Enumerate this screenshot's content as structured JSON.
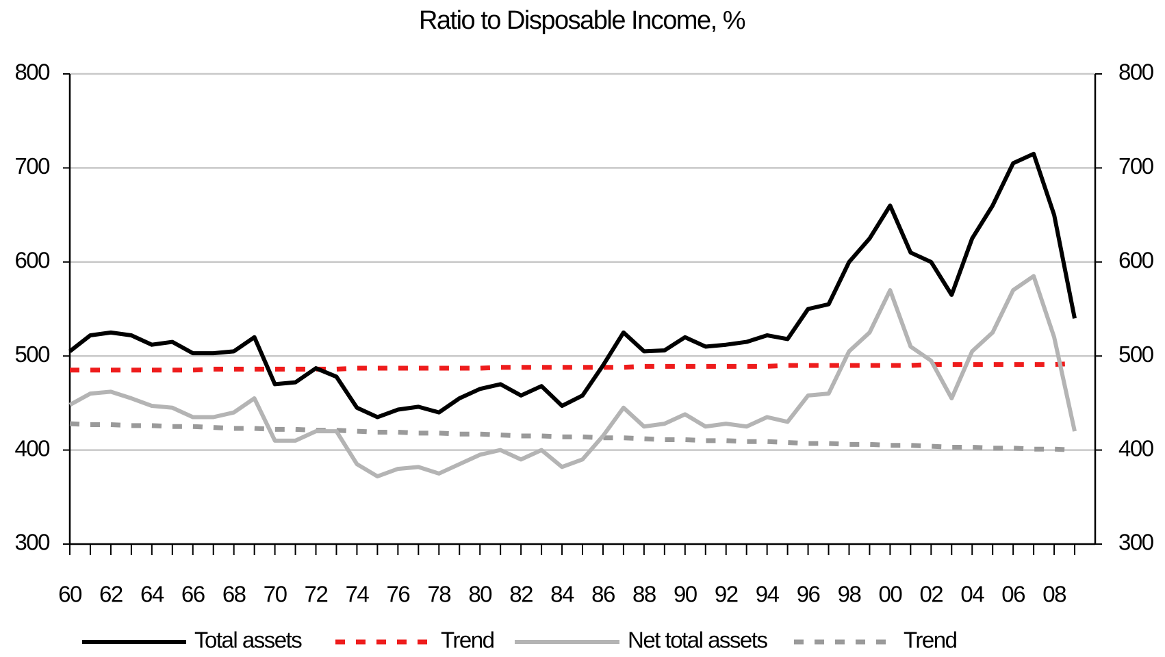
{
  "chart_data": {
    "type": "line",
    "title": "Ratio to Disposable Income, %",
    "categories": [
      "60",
      null,
      "62",
      null,
      "64",
      null,
      "66",
      null,
      "68",
      null,
      "70",
      null,
      "72",
      null,
      "74",
      null,
      "76",
      null,
      "78",
      null,
      "80",
      null,
      "82",
      null,
      "84",
      null,
      "86",
      null,
      "88",
      null,
      "90",
      null,
      "92",
      null,
      "94",
      null,
      "96",
      null,
      "98",
      null,
      "00",
      null,
      "02",
      null,
      "04",
      null,
      "06",
      null,
      "08",
      null
    ],
    "series": [
      {
        "name": "Total assets",
        "color": "#000000",
        "dashed": false,
        "values": [
          505,
          522,
          525,
          522,
          512,
          515,
          503,
          503,
          505,
          520,
          470,
          472,
          487,
          478,
          445,
          435,
          443,
          446,
          440,
          455,
          465,
          470,
          458,
          468,
          447,
          458,
          490,
          525,
          505,
          506,
          520,
          510,
          512,
          515,
          522,
          518,
          550,
          555,
          600,
          625,
          660,
          610,
          600,
          565,
          625,
          660,
          705,
          715,
          650,
          540
        ]
      },
      {
        "name": "Trend",
        "color": "#ee1c1c",
        "dashed": true,
        "values": [
          485,
          485,
          485,
          485,
          485,
          485,
          485,
          486,
          486,
          486,
          486,
          486,
          486,
          486,
          487,
          487,
          487,
          487,
          487,
          487,
          487,
          488,
          488,
          488,
          488,
          488,
          488,
          488,
          489,
          489,
          489,
          489,
          489,
          489,
          489,
          490,
          490,
          490,
          490,
          490,
          490,
          490,
          491,
          491,
          491,
          491,
          491,
          491,
          491,
          492
        ]
      },
      {
        "name": "Net total assets",
        "color": "#b4b4b4",
        "dashed": false,
        "values": [
          448,
          460,
          462,
          455,
          447,
          445,
          435,
          435,
          440,
          455,
          410,
          410,
          420,
          420,
          385,
          372,
          380,
          382,
          375,
          385,
          395,
          400,
          390,
          400,
          382,
          390,
          415,
          445,
          425,
          428,
          438,
          425,
          428,
          425,
          435,
          430,
          458,
          460,
          505,
          525,
          570,
          510,
          495,
          455,
          505,
          525,
          570,
          585,
          520,
          420
        ]
      },
      {
        "name": "Trend",
        "color": "#9a9a9a",
        "dashed": true,
        "values": [
          428,
          427,
          427,
          426,
          426,
          425,
          425,
          424,
          423,
          423,
          422,
          422,
          421,
          421,
          420,
          419,
          419,
          418,
          418,
          417,
          417,
          416,
          415,
          415,
          414,
          414,
          413,
          413,
          412,
          411,
          411,
          410,
          410,
          409,
          409,
          408,
          407,
          407,
          406,
          406,
          405,
          405,
          404,
          403,
          403,
          402,
          402,
          401,
          401,
          400
        ]
      }
    ],
    "ylim": [
      300,
      800
    ],
    "yticks": [
      300,
      400,
      500,
      600,
      700,
      800
    ],
    "y2lim": [
      300,
      800
    ],
    "y2ticks": [
      300,
      400,
      500,
      600,
      700,
      800
    ],
    "grid": true,
    "legend": "bottom"
  }
}
